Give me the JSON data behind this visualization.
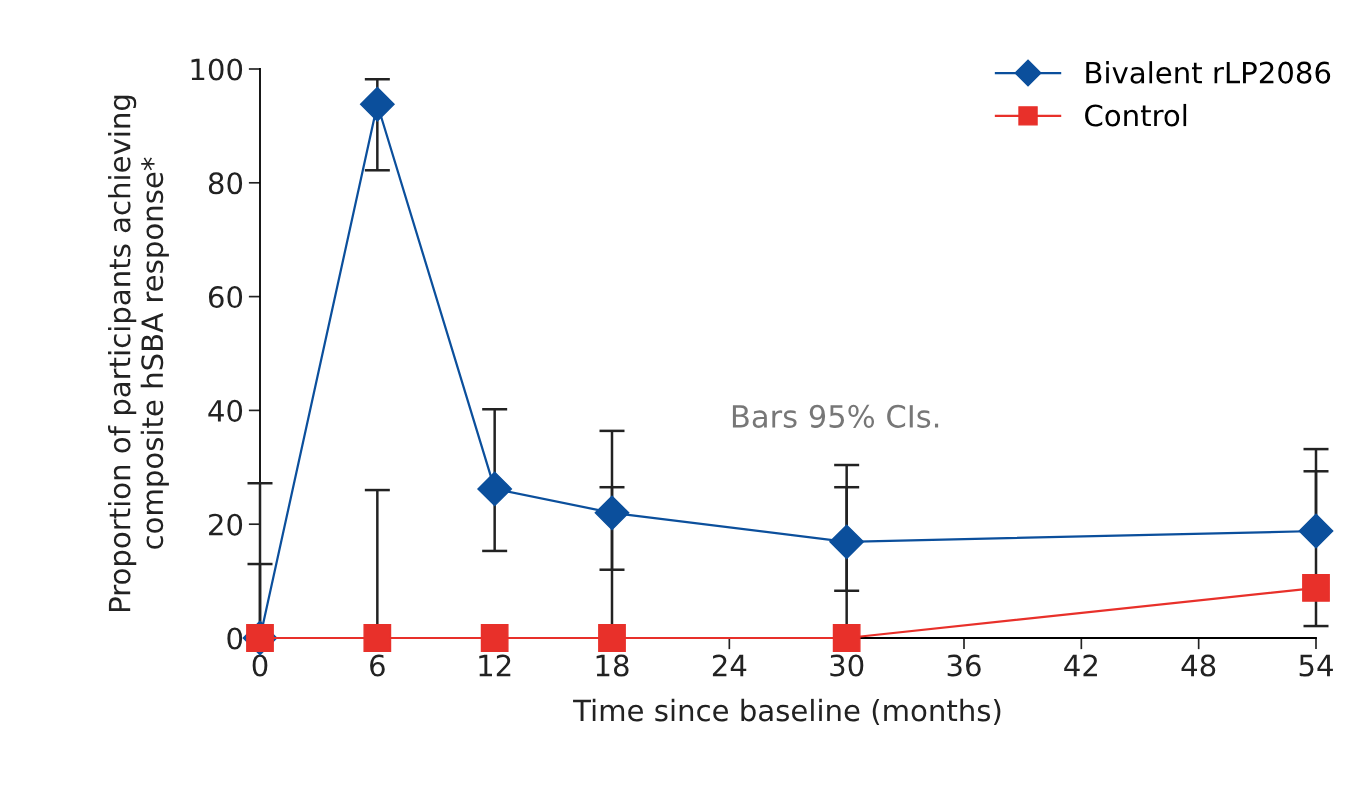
{
  "chart_data": {
    "type": "line",
    "xlabel": "Time since baseline (months)",
    "ylabel": "Proportion of participants achieving\ncomposite hSBA response*",
    "x": [
      0,
      6,
      12,
      18,
      30,
      54
    ],
    "series": [
      {
        "name": "Bivalent rLP2086",
        "color": "#0b4f9c",
        "marker": "diamond",
        "values": [
          0,
          93.8,
          26.2,
          22.0,
          16.9,
          18.8
        ],
        "errors": [
          [
            0,
            13.0
          ],
          [
            82.2,
            98.2
          ],
          [
            15.3,
            40.2
          ],
          [
            12.0,
            36.4
          ],
          [
            8.3,
            30.4
          ],
          [
            18.8,
            33.2
          ]
        ]
      },
      {
        "name": "Control",
        "color": "#e8302a",
        "marker": "square",
        "values": [
          0,
          0,
          0,
          0,
          0,
          8.8
        ],
        "errors": [
          [
            0,
            27.2
          ],
          [
            0,
            26.0
          ],
          null,
          [
            0,
            26.5
          ],
          [
            0,
            26.5
          ],
          [
            2.1,
            29.3
          ]
        ]
      }
    ],
    "xlim": [
      0,
      54
    ],
    "xticks": [
      0,
      6,
      12,
      18,
      24,
      30,
      36,
      42,
      48,
      54
    ],
    "ylim": [
      0,
      100
    ],
    "yticks": [
      0,
      20,
      40,
      60,
      80,
      100
    ],
    "annotations": [
      "Bars 95% CIs."
    ],
    "legend": "top right",
    "grid": false
  }
}
